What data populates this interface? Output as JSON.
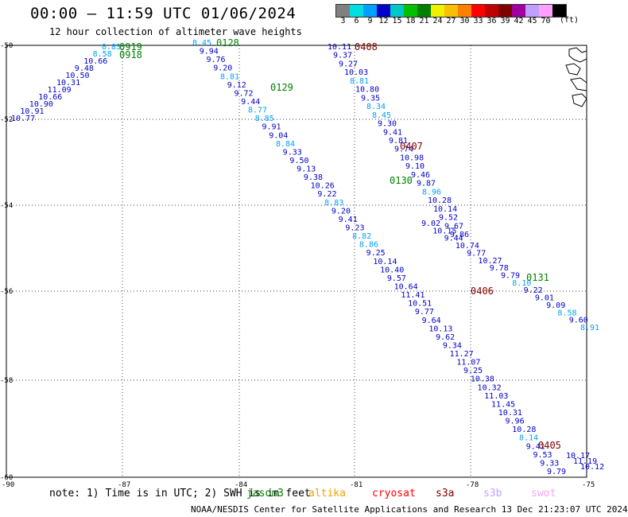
{
  "title": "00:00 — 11:59 UTC 01/06/2024",
  "subtitle": "12 hour collection of altimeter wave heights",
  "legend": {
    "units": "(ft)",
    "bins": [
      {
        "label": "3",
        "color": "#808080"
      },
      {
        "label": "6",
        "color": "#00e0e0"
      },
      {
        "label": "9",
        "color": "#00a0ff"
      },
      {
        "label": "12",
        "color": "#0000c8"
      },
      {
        "label": "15",
        "color": "#00c8c8"
      },
      {
        "label": "18",
        "color": "#00c000"
      },
      {
        "label": "21",
        "color": "#008000"
      },
      {
        "label": "24",
        "color": "#f0f000"
      },
      {
        "label": "27",
        "color": "#f8c000"
      },
      {
        "label": "30",
        "color": "#ff8000"
      },
      {
        "label": "33",
        "color": "#ff0000"
      },
      {
        "label": "36",
        "color": "#c00000"
      },
      {
        "label": "39",
        "color": "#800000"
      },
      {
        "label": "42",
        "color": "#a000a0"
      },
      {
        "label": "45",
        "color": "#c0a0ff"
      },
      {
        "label": "70",
        "color": "#ffa0ff"
      },
      {
        "label": "",
        "color": "#000000"
      }
    ]
  },
  "axes": {
    "lon_labels": [
      "-90",
      "-87",
      "-84",
      "-81",
      "-78",
      "-75"
    ],
    "lat_labels": [
      "-50",
      "-52",
      "-54",
      "-56",
      "-58",
      "-60"
    ]
  },
  "tracks": [
    {
      "time": "0919",
      "time_color": "#008000",
      "points": [
        {
          "v": "10.77",
          "c": "#0000c8"
        },
        {
          "v": "10.91",
          "c": "#0000c8"
        },
        {
          "v": "10.90",
          "c": "#0000c8"
        },
        {
          "v": "10.66",
          "c": "#0000c8"
        },
        {
          "v": "11.09",
          "c": "#0000c8"
        },
        {
          "v": "10.31",
          "c": "#0000c8"
        },
        {
          "v": "10.50",
          "c": "#0000c8"
        },
        {
          "v": "9.48",
          "c": "#0000c8"
        },
        {
          "v": "10.66",
          "c": "#0000c8"
        },
        {
          "v": "8.58",
          "c": "#00a0ff"
        },
        {
          "v": "8.83",
          "c": "#00a0ff"
        }
      ]
    },
    {
      "time": "0918",
      "time_color": "#008000",
      "points": []
    },
    {
      "time": "0128",
      "time_color": "#008000",
      "points": [
        {
          "v": "8.45",
          "c": "#00a0ff"
        },
        {
          "v": "9.94",
          "c": "#0000c8"
        },
        {
          "v": "9.76",
          "c": "#0000c8"
        },
        {
          "v": "9.20",
          "c": "#0000c8"
        },
        {
          "v": "8.81",
          "c": "#00a0ff"
        },
        {
          "v": "9.12",
          "c": "#0000c8"
        },
        {
          "v": "9.72",
          "c": "#0000c8"
        },
        {
          "v": "9.44",
          "c": "#0000c8"
        },
        {
          "v": "8.77",
          "c": "#00a0ff"
        },
        {
          "v": "8.85",
          "c": "#00a0ff"
        },
        {
          "v": "9.91",
          "c": "#0000c8"
        },
        {
          "v": "9.04",
          "c": "#0000c8"
        },
        {
          "v": "8.84",
          "c": "#00a0ff"
        },
        {
          "v": "9.33",
          "c": "#0000c8"
        },
        {
          "v": "9.50",
          "c": "#0000c8"
        },
        {
          "v": "9.13",
          "c": "#0000c8"
        },
        {
          "v": "9.38",
          "c": "#0000c8"
        },
        {
          "v": "10.26",
          "c": "#0000c8"
        },
        {
          "v": "9.22",
          "c": "#0000c8"
        },
        {
          "v": "8.83",
          "c": "#00a0ff"
        },
        {
          "v": "9.20",
          "c": "#0000c8"
        },
        {
          "v": "9.41",
          "c": "#0000c8"
        },
        {
          "v": "9.23",
          "c": "#0000c8"
        },
        {
          "v": "8.82",
          "c": "#00a0ff"
        },
        {
          "v": "8.86",
          "c": "#00a0ff"
        },
        {
          "v": "9.25",
          "c": "#0000c8"
        },
        {
          "v": "10.14",
          "c": "#0000c8"
        },
        {
          "v": "10.40",
          "c": "#0000c8"
        },
        {
          "v": "9.57",
          "c": "#0000c8"
        },
        {
          "v": "10.64",
          "c": "#0000c8"
        },
        {
          "v": "11.41",
          "c": "#0000c8"
        },
        {
          "v": "10.51",
          "c": "#0000c8"
        },
        {
          "v": "9.77",
          "c": "#0000c8"
        },
        {
          "v": "9.64",
          "c": "#0000c8"
        },
        {
          "v": "10.13",
          "c": "#0000c8"
        },
        {
          "v": "9.62",
          "c": "#0000c8"
        },
        {
          "v": "9.34",
          "c": "#0000c8"
        },
        {
          "v": "11.27",
          "c": "#0000c8"
        },
        {
          "v": "11.07",
          "c": "#0000c8"
        },
        {
          "v": "9.25",
          "c": "#0000c8"
        },
        {
          "v": "10.38",
          "c": "#0000c8"
        },
        {
          "v": "10.32",
          "c": "#0000c8"
        },
        {
          "v": "11.03",
          "c": "#0000c8"
        },
        {
          "v": "11.45",
          "c": "#0000c8"
        },
        {
          "v": "10.31",
          "c": "#0000c8"
        },
        {
          "v": "9.96",
          "c": "#0000c8"
        },
        {
          "v": "10.28",
          "c": "#0000c8"
        },
        {
          "v": "8.14",
          "c": "#00a0ff"
        },
        {
          "v": "9.41",
          "c": "#0000c8"
        },
        {
          "v": "9.53",
          "c": "#0000c8"
        },
        {
          "v": "9.33",
          "c": "#0000c8"
        },
        {
          "v": "9.79",
          "c": "#0000c8"
        }
      ]
    },
    {
      "time": "0129",
      "time_color": "#008000",
      "points": []
    },
    {
      "time": "0130",
      "time_color": "#008000",
      "points": []
    },
    {
      "time": "0131",
      "time_color": "#008000",
      "points": [
        {
          "v": "9.02",
          "c": "#0000c8"
        },
        {
          "v": "10.15",
          "c": "#0000c8"
        },
        {
          "v": "9.44",
          "c": "#0000c8"
        },
        {
          "v": "10.74",
          "c": "#0000c8"
        },
        {
          "v": "9.77",
          "c": "#0000c8"
        },
        {
          "v": "10.27",
          "c": "#0000c8"
        },
        {
          "v": "9.78",
          "c": "#0000c8"
        },
        {
          "v": "9.79",
          "c": "#0000c8"
        },
        {
          "v": "8.10",
          "c": "#00a0ff"
        },
        {
          "v": "9.22",
          "c": "#0000c8"
        },
        {
          "v": "9.01",
          "c": "#0000c8"
        },
        {
          "v": "9.09",
          "c": "#0000c8"
        },
        {
          "v": "8.58",
          "c": "#00a0ff"
        },
        {
          "v": "9.60",
          "c": "#0000c8"
        },
        {
          "v": "8.91",
          "c": "#00a0ff"
        }
      ]
    },
    {
      "time": "0408",
      "time_color": "#800000",
      "points": [
        {
          "v": "10.11",
          "c": "#0000c8"
        },
        {
          "v": "9.37",
          "c": "#0000c8"
        },
        {
          "v": "9.27",
          "c": "#0000c8"
        },
        {
          "v": "10.03",
          "c": "#0000c8"
        },
        {
          "v": "8.81",
          "c": "#00a0ff"
        },
        {
          "v": "10.80",
          "c": "#0000c8"
        },
        {
          "v": "9.35",
          "c": "#0000c8"
        },
        {
          "v": "8.34",
          "c": "#00a0ff"
        },
        {
          "v": "8.45",
          "c": "#00a0ff"
        },
        {
          "v": "9.30",
          "c": "#0000c8"
        },
        {
          "v": "9.41",
          "c": "#0000c8"
        },
        {
          "v": "9.81",
          "c": "#0000c8"
        },
        {
          "v": "9.74",
          "c": "#0000c8"
        },
        {
          "v": "10.98",
          "c": "#0000c8"
        },
        {
          "v": "9.10",
          "c": "#0000c8"
        },
        {
          "v": "9.46",
          "c": "#0000c8"
        },
        {
          "v": "9.87",
          "c": "#0000c8"
        },
        {
          "v": "8.96",
          "c": "#00a0ff"
        },
        {
          "v": "10.28",
          "c": "#0000c8"
        },
        {
          "v": "10.14",
          "c": "#0000c8"
        },
        {
          "v": "9.52",
          "c": "#0000c8"
        },
        {
          "v": "9.67",
          "c": "#0000c8"
        },
        {
          "v": "9.86",
          "c": "#0000c8"
        }
      ]
    },
    {
      "time": "0407",
      "time_color": "#800000",
      "points": []
    },
    {
      "time": "0406",
      "time_color": "#800000",
      "points": []
    },
    {
      "time": "0405",
      "time_color": "#800000",
      "points": [
        {
          "v": "10.17",
          "c": "#0000c8"
        },
        {
          "v": "11.19",
          "c": "#0000c8"
        },
        {
          "v": "10.12",
          "c": "#0000c8"
        }
      ]
    }
  ],
  "note": "note: 1) Time is in UTC; 2) SWH is in feet",
  "satellites": [
    {
      "name": "jason3",
      "color": "#008000"
    },
    {
      "name": "altika",
      "color": "#f8a000"
    },
    {
      "name": "cryosat",
      "color": "#ff0000"
    },
    {
      "name": "s3a",
      "color": "#800000"
    },
    {
      "name": "s3b",
      "color": "#c0a0ff"
    },
    {
      "name": "swot",
      "color": "#ffa0ff"
    }
  ],
  "footer": "NOAA/NESDIS Center for Satellite Applications and Research   13 Dec 21:23:07 UTC 2024"
}
